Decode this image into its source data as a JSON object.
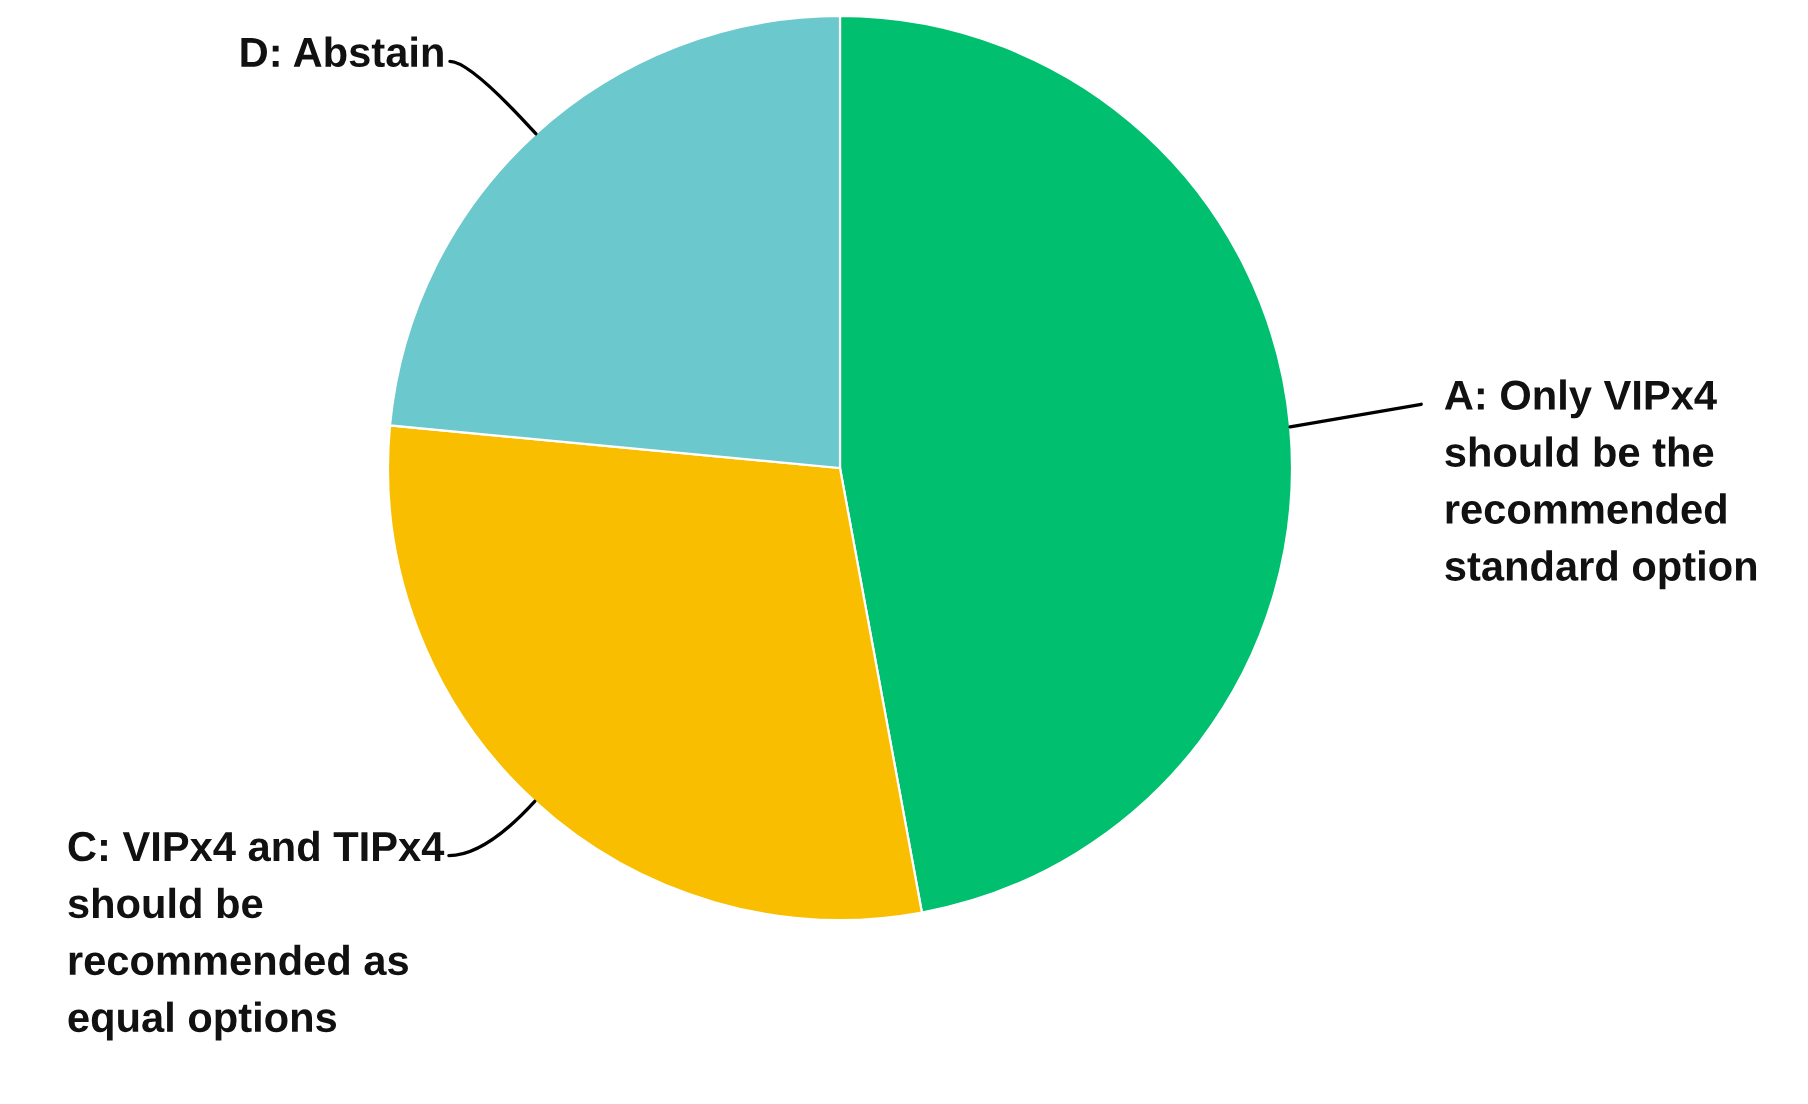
{
  "chart_data": {
    "type": "pie",
    "categories": [
      "A: Only VIPx4\nshould be the\nrecommended\nstandard option",
      "C: VIPx4 and TIPx4\nshould be\nrecommended as\nequal options",
      "D: Abstain"
    ],
    "values": [
      47.1,
      29.4,
      23.5
    ],
    "colors": [
      "#00bf6f",
      "#f9be00",
      "#6bc8cd"
    ]
  }
}
